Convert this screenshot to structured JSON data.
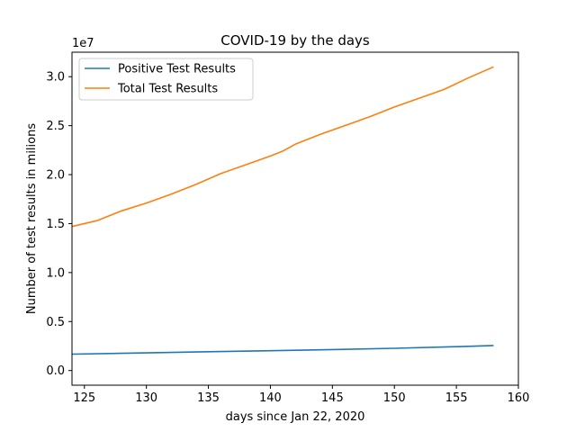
{
  "chart_data": {
    "type": "line",
    "title": "COVID-19 by the days",
    "xlabel": "days since Jan 22, 2020",
    "ylabel": "Number of test results in milions",
    "y_offset_label": "1e7",
    "xlim": [
      124,
      160
    ],
    "ylim": [
      -0.15,
      3.25
    ],
    "y_scale_multiplier": 10000000,
    "x_ticks": [
      125,
      130,
      135,
      140,
      145,
      150,
      155,
      160
    ],
    "y_ticks": [
      0.0,
      0.5,
      1.0,
      1.5,
      2.0,
      2.5,
      3.0
    ],
    "y_tick_labels": [
      "0.0",
      "0.5",
      "1.0",
      "1.5",
      "2.0",
      "2.5",
      "3.0"
    ],
    "legend_position": "upper-left",
    "grid": false,
    "series": [
      {
        "name": "Positive Test Results",
        "color": "#1f77b4",
        "x": [
          124,
          130,
          135,
          140,
          145,
          150,
          155,
          158
        ],
        "values": [
          0.167,
          0.18,
          0.192,
          0.202,
          0.214,
          0.227,
          0.243,
          0.255
        ]
      },
      {
        "name": "Total Test Results",
        "color": "#ff7f0e",
        "x": [
          124,
          126,
          128,
          130,
          132,
          134,
          136,
          138,
          140,
          141,
          142,
          144,
          146,
          148,
          150,
          152,
          154,
          156,
          158
        ],
        "values": [
          1.47,
          1.53,
          1.63,
          1.71,
          1.8,
          1.9,
          2.01,
          2.1,
          2.19,
          2.24,
          2.31,
          2.41,
          2.5,
          2.59,
          2.69,
          2.78,
          2.87,
          2.99,
          3.1
        ]
      }
    ]
  }
}
